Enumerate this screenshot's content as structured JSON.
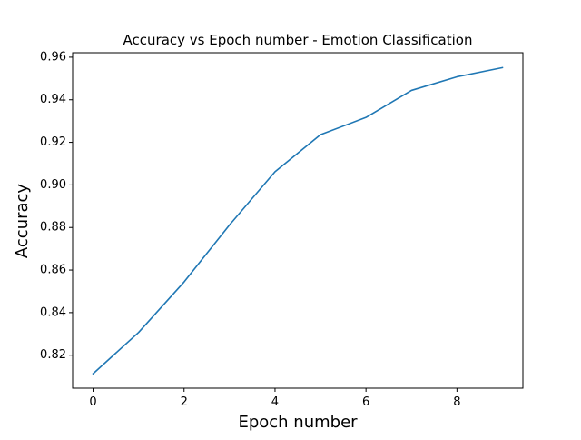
{
  "chart_data": {
    "type": "line",
    "title": "Accuracy vs Epoch number - Emotion Classification",
    "xlabel": "Epoch number",
    "ylabel": "Accuracy",
    "xlim": [
      -0.45,
      9.45
    ],
    "ylim": [
      0.8045,
      0.9621
    ],
    "xticks": [
      0,
      2,
      4,
      6,
      8
    ],
    "xtick_labels": [
      "0",
      "2",
      "4",
      "6",
      "8"
    ],
    "yticks": [
      0.82,
      0.84,
      0.86,
      0.88,
      0.9,
      0.92,
      0.94,
      0.96
    ],
    "ytick_labels": [
      "0.82",
      "0.84",
      "0.86",
      "0.88",
      "0.90",
      "0.92",
      "0.94",
      "0.96"
    ],
    "grid": false,
    "series": [
      {
        "color": "#1f77b4",
        "x": [
          0,
          1,
          2,
          3,
          4,
          5,
          6,
          7,
          8,
          9
        ],
        "y": [
          0.8113,
          0.8307,
          0.8544,
          0.8812,
          0.9062,
          0.9236,
          0.9317,
          0.9444,
          0.9508,
          0.9551
        ]
      }
    ]
  }
}
